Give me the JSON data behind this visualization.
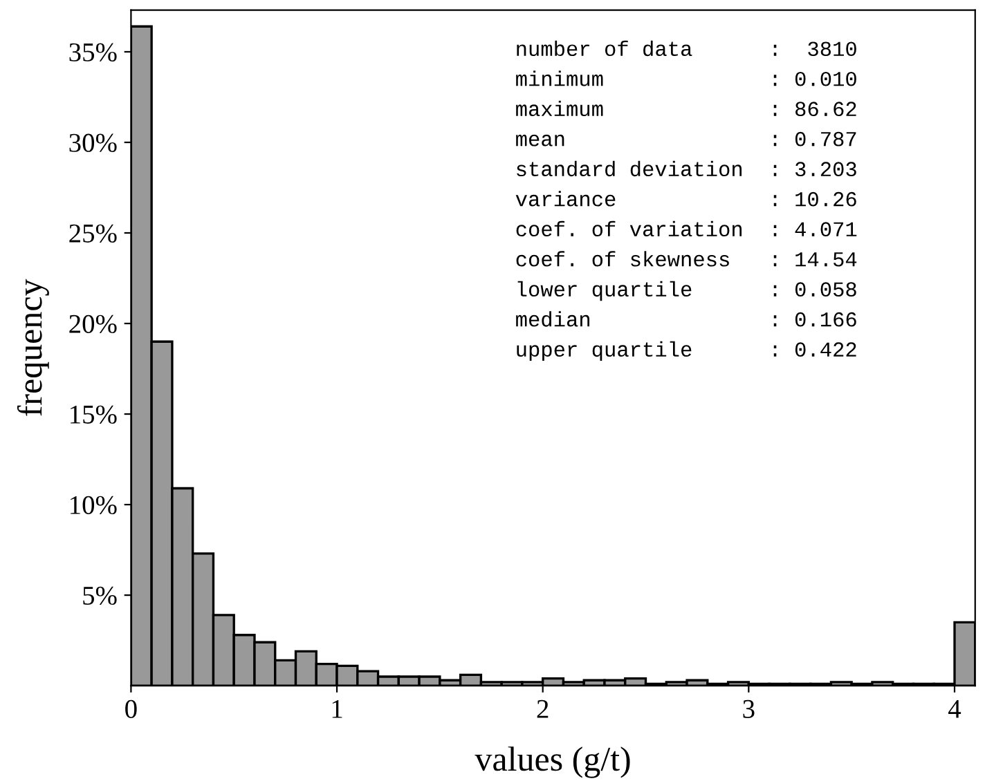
{
  "chart_data": {
    "type": "histogram",
    "xlabel": "values (g/t)",
    "ylabel": "frequency",
    "bins": [
      0,
      0.1,
      0.2,
      0.3,
      0.4,
      0.5,
      0.6,
      0.7,
      0.8,
      0.9,
      1.0,
      1.1,
      1.2,
      1.3,
      1.4,
      1.5,
      1.6,
      1.7,
      1.8,
      1.9,
      2.0,
      2.1,
      2.2,
      2.3,
      2.4,
      2.5,
      2.6,
      2.7,
      2.8,
      2.9,
      3.0,
      3.1,
      3.2,
      3.3,
      3.4,
      3.5,
      3.6,
      3.7,
      3.8,
      3.9,
      4.0,
      4.1
    ],
    "values": [
      36.4,
      19.0,
      10.9,
      7.3,
      3.9,
      2.8,
      2.4,
      1.4,
      1.9,
      1.2,
      1.1,
      0.8,
      0.5,
      0.5,
      0.5,
      0.3,
      0.6,
      0.2,
      0.2,
      0.2,
      0.4,
      0.2,
      0.3,
      0.3,
      0.4,
      0.1,
      0.2,
      0.3,
      0.1,
      0.2,
      0.1,
      0.1,
      0.1,
      0.1,
      0.2,
      0.1,
      0.2,
      0.1,
      0.1,
      0.1,
      3.5
    ],
    "color": "#999999",
    "xlim": [
      0,
      4.1
    ],
    "ylim": [
      0,
      37.3
    ],
    "xticks": [
      0,
      1,
      2,
      3,
      4
    ],
    "yticks": [
      {
        "value": 5,
        "label": "5%"
      },
      {
        "value": 10,
        "label": "10%"
      },
      {
        "value": 15,
        "label": "15%"
      },
      {
        "value": 20,
        "label": "20%"
      },
      {
        "value": 25,
        "label": "25%"
      },
      {
        "value": 30,
        "label": "30%"
      },
      {
        "value": 35,
        "label": "35%"
      }
    ],
    "grid": false,
    "annotations": [
      "number of data      :  3810",
      "minimum             : 0.010",
      "maximum             : 86.62",
      "mean                : 0.787",
      "standard deviation  : 3.203",
      "variance            : 10.26",
      "coef. of variation  : 4.071",
      "coef. of skewness   : 14.54",
      "lower quartile      : 0.058",
      "median              : 0.166",
      "upper quartile      : 0.422"
    ]
  }
}
